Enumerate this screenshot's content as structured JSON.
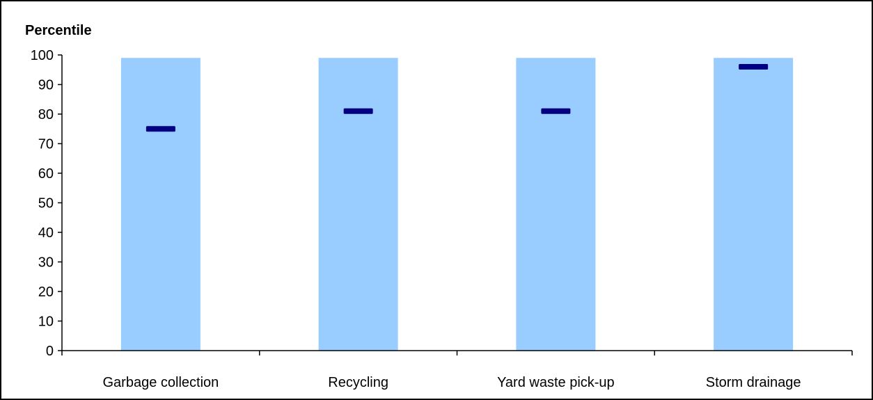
{
  "chart_data": {
    "type": "bar",
    "ylabel": "Percentile",
    "xlabel": "",
    "title": "",
    "categories": [
      "Garbage collection",
      "Recycling",
      "Yard waste pick-up",
      "Storm drainage"
    ],
    "series": [
      {
        "values": [
          99,
          99,
          99,
          99
        ]
      },
      {
        "values": [
          75,
          81,
          81,
          96
        ]
      }
    ],
    "ylim": [
      0,
      100
    ],
    "yticks": [
      "0",
      "10",
      "20",
      "30",
      "40",
      "50",
      "60",
      "70",
      "80",
      "90",
      "100"
    ],
    "grid": false,
    "legend": "none",
    "colors": {
      "bar": "#99ccff",
      "marker": "#000080",
      "axis": "#000000"
    }
  }
}
